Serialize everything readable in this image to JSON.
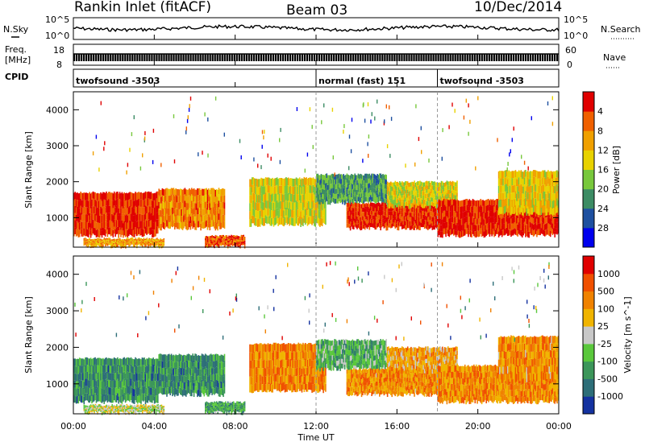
{
  "header": {
    "left": "Rankin Inlet (fitACF)",
    "center": "Beam 03",
    "right": "10/Dec/2014"
  },
  "strips": {
    "nsky_label": "N.Sky",
    "nsky_ticks": [
      "10^5",
      "10^0"
    ],
    "nsearch_label": "N.Search",
    "nsearch_ticks": [
      "10^5",
      "10^0"
    ],
    "freq_label_1": "Freq.",
    "freq_label_2": "[MHz]",
    "freq_ticks": [
      "18",
      "8"
    ],
    "nave_label": "Nave",
    "nave_ticks": [
      "60",
      "0"
    ],
    "cpid_label": "CPID",
    "cpid_segments": [
      {
        "label": "twofsound -3503",
        "start": 0,
        "end": 12.0
      },
      {
        "label": "normal (fast) 151",
        "start": 12.0,
        "end": 18.0
      },
      {
        "label": "twofsound -3503",
        "start": 18.0,
        "end": 24
      }
    ]
  },
  "time_axis": {
    "label": "Time UT",
    "ticks": [
      "00:00",
      "04:00",
      "08:00",
      "12:00",
      "16:00",
      "20:00",
      "00:00"
    ]
  },
  "chart_data": [
    {
      "type": "heatmap",
      "panel": "power",
      "ylabel": "Slant Range [km]",
      "yticks": [
        "1000",
        "2000",
        "3000",
        "4000"
      ],
      "ylim": [
        180,
        4500
      ],
      "x_range_hours": [
        0,
        24
      ],
      "colorbar_label": "Power [dB]",
      "colorbar_ticks": [
        "4",
        "8",
        "12",
        "16",
        "20",
        "24",
        "28"
      ],
      "colorbar_range": [
        0,
        30
      ],
      "colors": [
        "#0000ee",
        "#1e50a0",
        "#3c8c64",
        "#78c83c",
        "#e8d200",
        "#f0a000",
        "#f06000",
        "#e00000"
      ],
      "regions": [
        {
          "t0": 0.0,
          "t1": 4.2,
          "r0": 500,
          "r1": 1700,
          "level": 0.9
        },
        {
          "t0": 4.2,
          "t1": 7.5,
          "r0": 700,
          "r1": 1800,
          "level": 0.75
        },
        {
          "t0": 6.5,
          "t1": 8.5,
          "r0": 200,
          "r1": 500,
          "level": 0.85
        },
        {
          "t0": 8.7,
          "t1": 12.5,
          "r0": 800,
          "r1": 2100,
          "level": 0.55
        },
        {
          "t0": 12.0,
          "t1": 15.5,
          "r0": 1400,
          "r1": 2200,
          "level": 0.35
        },
        {
          "t0": 13.5,
          "t1": 18.0,
          "r0": 700,
          "r1": 1400,
          "level": 0.9
        },
        {
          "t0": 15.5,
          "t1": 19.0,
          "r0": 1300,
          "r1": 2000,
          "level": 0.55
        },
        {
          "t0": 18.0,
          "t1": 24.0,
          "r0": 500,
          "r1": 1500,
          "level": 0.92
        },
        {
          "t0": 21.0,
          "t1": 24.0,
          "r0": 1100,
          "r1": 2300,
          "level": 0.6
        },
        {
          "t0": 0.5,
          "t1": 4.5,
          "r0": 200,
          "r1": 420,
          "level": 0.7
        }
      ]
    },
    {
      "type": "heatmap",
      "panel": "velocity",
      "ylabel": "Slant Range [km]",
      "yticks": [
        "1000",
        "2000",
        "3000",
        "4000"
      ],
      "ylim": [
        180,
        4500
      ],
      "x_range_hours": [
        0,
        24
      ],
      "colorbar_label": "Velocity [m s^-1]",
      "colorbar_ticks": [
        "1000",
        "500",
        "100",
        "25",
        "-25",
        "-100",
        "-500",
        "-1000"
      ],
      "colorbar_range": [
        -1000,
        1000
      ],
      "colors": [
        "#1432a0",
        "#2d6e78",
        "#3c965a",
        "#5ac83c",
        "#c8c8c8",
        "#f0b400",
        "#f08200",
        "#f05000",
        "#e00000"
      ],
      "regions": [
        {
          "t0": 0.0,
          "t1": 4.2,
          "r0": 500,
          "r1": 1700,
          "level": 0.25
        },
        {
          "t0": 4.2,
          "t1": 7.5,
          "r0": 700,
          "r1": 1800,
          "level": 0.25
        },
        {
          "t0": 6.5,
          "t1": 8.5,
          "r0": 200,
          "r1": 500,
          "level": 0.3
        },
        {
          "t0": 8.7,
          "t1": 12.5,
          "r0": 800,
          "r1": 2100,
          "level": 0.72
        },
        {
          "t0": 12.0,
          "t1": 15.5,
          "r0": 1400,
          "r1": 2200,
          "level": 0.35
        },
        {
          "t0": 13.5,
          "t1": 18.0,
          "r0": 700,
          "r1": 1400,
          "level": 0.7
        },
        {
          "t0": 15.5,
          "t1": 19.0,
          "r0": 1300,
          "r1": 2000,
          "level": 0.65
        },
        {
          "t0": 18.0,
          "t1": 24.0,
          "r0": 500,
          "r1": 1500,
          "level": 0.72
        },
        {
          "t0": 21.0,
          "t1": 24.0,
          "r0": 1100,
          "r1": 2300,
          "level": 0.7
        },
        {
          "t0": 0.5,
          "t1": 4.5,
          "r0": 200,
          "r1": 420,
          "level": 0.5
        }
      ]
    }
  ]
}
